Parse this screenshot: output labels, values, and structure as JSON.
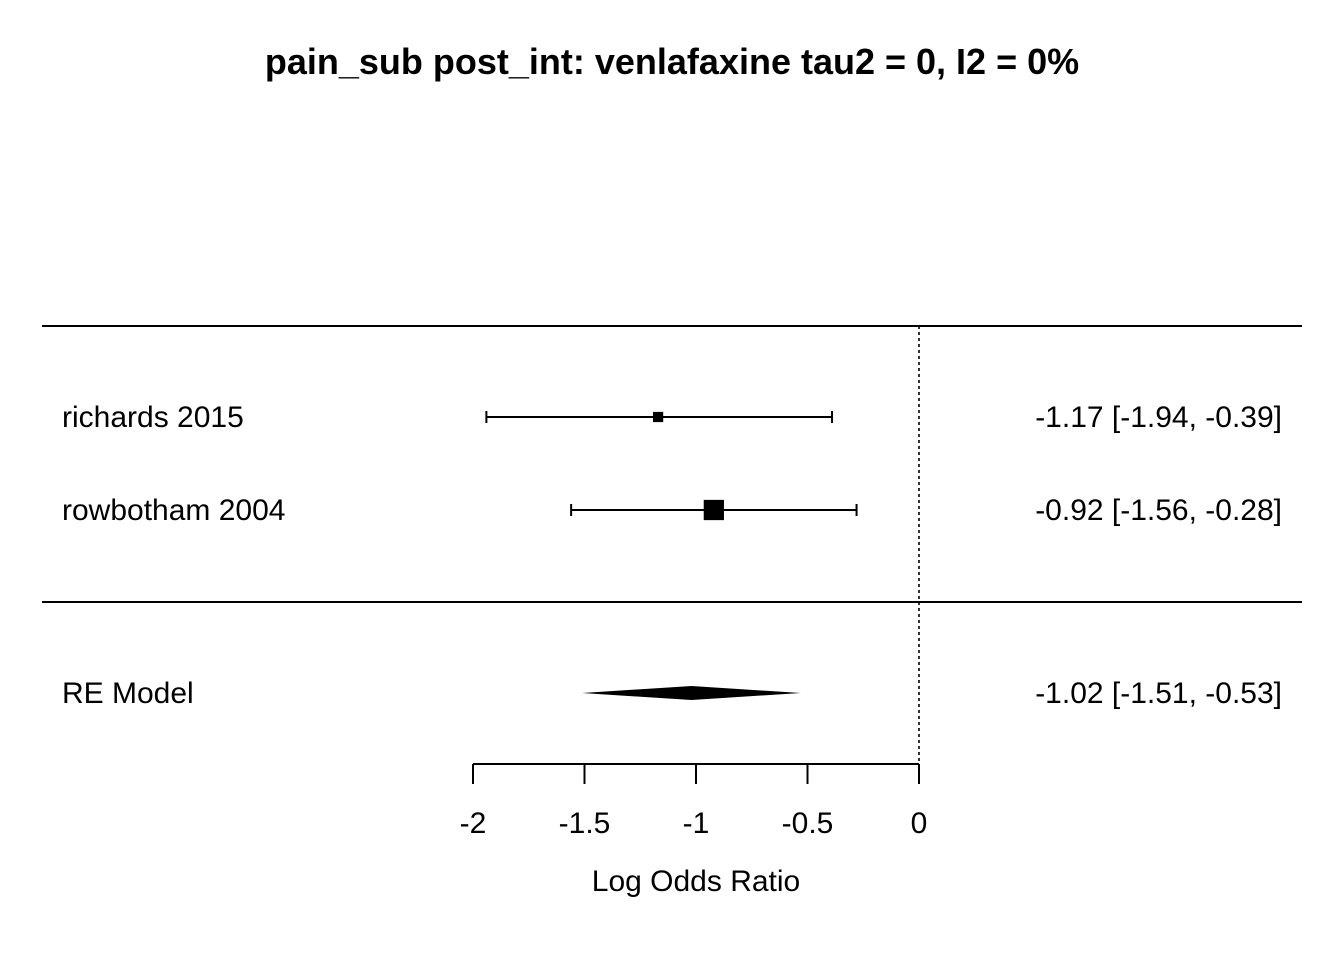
{
  "chart_data": {
    "type": "forest",
    "title": "pain_sub post_int: venlafaxine tau2 = 0, I2 = 0%",
    "xlabel": "Log Odds Ratio",
    "xlim": [
      -2,
      0
    ],
    "xticks": [
      -2,
      -1.5,
      -1,
      -0.5,
      0
    ],
    "xtick_labels": [
      "-2",
      "-1.5",
      "-1",
      "-0.5",
      "0"
    ],
    "reference_line": 0,
    "studies": [
      {
        "label": "richards 2015",
        "estimate": -1.17,
        "ci_low": -1.94,
        "ci_high": -0.39,
        "weight": 0.4,
        "annotation": "-1.17 [-1.94, -0.39]"
      },
      {
        "label": "rowbotham 2004",
        "estimate": -0.92,
        "ci_low": -1.56,
        "ci_high": -0.28,
        "weight": 0.6,
        "annotation": "-0.92 [-1.56, -0.28]"
      }
    ],
    "summary": {
      "label": "RE Model",
      "estimate": -1.02,
      "ci_low": -1.51,
      "ci_high": -0.53,
      "annotation": "-1.02 [-1.51, -0.53]"
    }
  }
}
